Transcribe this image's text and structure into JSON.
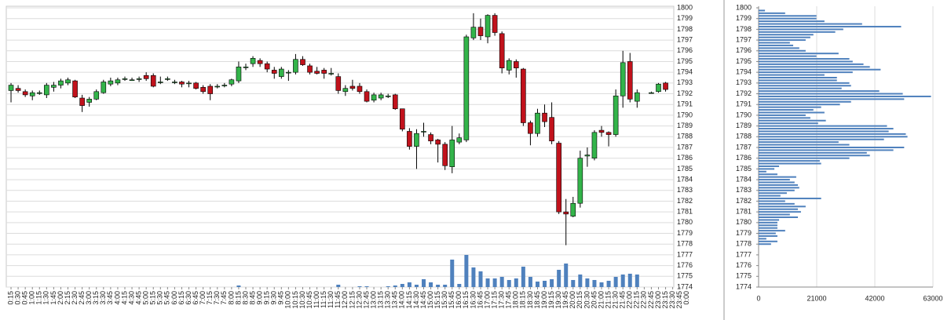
{
  "chart_data": [
    {
      "type": "candlestick",
      "categories": [
        "0:15",
        "0:30",
        "0:45",
        "1:00",
        "1:15",
        "1:30",
        "1:45",
        "2:00",
        "2:15",
        "2:30",
        "2:45",
        "3:00",
        "3:15",
        "3:30",
        "3:45",
        "4:00",
        "4:15",
        "4:30",
        "4:45",
        "5:00",
        "5:15",
        "5:30",
        "5:45",
        "6:00",
        "6:15",
        "6:30",
        "6:45",
        "7:00",
        "7:15",
        "7:30",
        "7:45",
        "8:00",
        "8:15",
        "8:30",
        "8:45",
        "9:00",
        "9:15",
        "9:30",
        "9:45",
        "10:00",
        "10:15",
        "10:30",
        "10:45",
        "11:00",
        "11:15",
        "11:30",
        "11:45",
        "12:00",
        "12:15",
        "12:30",
        "12:45",
        "13:00",
        "13:15",
        "13:30",
        "13:45",
        "14:00",
        "14:15",
        "14:30",
        "14:45",
        "15:00",
        "15:15",
        "15:30",
        "15:45",
        "16:00",
        "16:15",
        "16:30",
        "16:45",
        "17:00",
        "17:15",
        "17:30",
        "17:45",
        "18:00",
        "18:15",
        "18:30",
        "18:45",
        "19:00",
        "19:15",
        "19:30",
        "19:45",
        "20:00",
        "20:15",
        "20:30",
        "20:45",
        "21:00",
        "21:15",
        "21:30",
        "21:45",
        "22:00",
        "22:15",
        "22:30",
        "22:45",
        "23:00",
        "23:15",
        "23:30",
        "23:45",
        "0:00"
      ],
      "open": [
        1792.3,
        1792.5,
        1792.2,
        1791.8,
        1792.1,
        1791.9,
        1792.6,
        1792.8,
        1793.0,
        1793.2,
        1791.6,
        1791.2,
        1791.5,
        1792.1,
        1792.9,
        1793.0,
        1793.4,
        1793.3,
        1793.4,
        1793.7,
        1793.7,
        1793.1,
        1793.4,
        1793.1,
        1793.1,
        1793.0,
        1793.0,
        1792.6,
        1792.7,
        1792.7,
        1792.8,
        1792.9,
        1793.2,
        1794.5,
        1794.8,
        1795.1,
        1794.8,
        1794.2,
        1793.6,
        1794.0,
        1794.0,
        1795.2,
        1794.6,
        1794.1,
        1794.2,
        1793.9,
        1793.6,
        1792.2,
        1792.7,
        1792.7,
        1792.2,
        1791.4,
        1791.6,
        1791.8,
        1791.9,
        1790.6,
        1788.5,
        1787.1,
        1788.5,
        1788.2,
        1787.7,
        1787.3,
        1785.2,
        1787.5,
        1787.7,
        1797.2,
        1798.2,
        1797.3,
        1799.3,
        1797.6,
        1794.2,
        1795.0,
        1794.3,
        1789.3,
        1788.3,
        1790.2,
        1789.8,
        1787.4,
        1781.0,
        1780.6,
        1781.8,
        1786.2,
        1786.0,
        1788.6,
        1788.4,
        1788.2,
        1791.8,
        1795.0,
        1791.3,
        null,
        1792.1,
        1792.2,
        1793.0,
        null,
        null,
        null
      ],
      "high": [
        1793.0,
        1792.8,
        1792.4,
        1792.3,
        1792.3,
        1793.0,
        1793.1,
        1793.4,
        1793.5,
        1793.3,
        1791.9,
        1791.7,
        1792.4,
        1793.3,
        1793.5,
        1793.5,
        1793.6,
        1793.5,
        1793.6,
        1794.0,
        1793.9,
        1793.6,
        1793.6,
        1793.3,
        1793.2,
        1793.2,
        1793.1,
        1792.8,
        1792.9,
        1792.9,
        1793.0,
        1793.4,
        1795.0,
        1794.8,
        1795.5,
        1795.3,
        1795.0,
        1794.5,
        1794.5,
        1794.2,
        1795.7,
        1795.5,
        1794.8,
        1794.5,
        1794.4,
        1794.4,
        1793.9,
        1792.8,
        1793.3,
        1793.0,
        1792.4,
        1792.1,
        1792.1,
        1792.0,
        1792.0,
        1790.6,
        1788.8,
        1788.7,
        1789.3,
        1788.4,
        1787.8,
        1787.5,
        1789.0,
        1788.3,
        1797.5,
        1799.5,
        1799.0,
        1799.4,
        1799.5,
        1797.8,
        1795.3,
        1795.2,
        1794.4,
        1789.5,
        1790.6,
        1791.0,
        1791.2,
        1787.6,
        1782.2,
        1782.4,
        1786.7,
        1787.0,
        1788.6,
        1789.0,
        1788.5,
        1792.4,
        1796.0,
        1795.8,
        1792.4,
        null,
        1792.2,
        1793.0,
        1793.1,
        null,
        null,
        null
      ],
      "low": [
        1791.2,
        1792.1,
        1791.7,
        1791.4,
        1791.9,
        1791.6,
        1792.2,
        1792.5,
        1792.8,
        1791.6,
        1790.3,
        1790.8,
        1791.4,
        1792.0,
        1792.7,
        1792.8,
        1793.2,
        1793.2,
        1793.1,
        1793.2,
        1792.6,
        1792.9,
        1793.2,
        1792.9,
        1792.6,
        1792.6,
        1792.4,
        1792.0,
        1791.4,
        1792.5,
        1792.6,
        1792.7,
        1793.0,
        1794.2,
        1794.5,
        1794.5,
        1794.0,
        1793.4,
        1793.4,
        1793.2,
        1793.8,
        1794.6,
        1793.8,
        1793.8,
        1793.4,
        1793.7,
        1792.0,
        1791.8,
        1792.3,
        1792.0,
        1791.2,
        1791.2,
        1791.4,
        1791.6,
        1790.5,
        1788.5,
        1786.8,
        1785.0,
        1788.0,
        1787.3,
        1785.6,
        1784.9,
        1784.6,
        1787.3,
        1787.5,
        1797.0,
        1797.0,
        1796.7,
        1797.4,
        1793.9,
        1793.8,
        1793.5,
        1789.0,
        1787.2,
        1788.0,
        1788.9,
        1787.3,
        1780.8,
        1777.9,
        1780.5,
        1781.4,
        1785.2,
        1785.8,
        1788.0,
        1787.1,
        1788.0,
        1790.7,
        1791.2,
        1790.7,
        null,
        1792.0,
        1792.1,
        1792.2,
        null,
        null,
        null
      ],
      "close": [
        1792.8,
        1792.3,
        1791.9,
        1792.1,
        1792.1,
        1792.8,
        1792.8,
        1793.2,
        1793.3,
        1791.7,
        1790.9,
        1791.5,
        1792.2,
        1793.1,
        1793.2,
        1793.3,
        1793.4,
        1793.3,
        1793.4,
        1793.4,
        1792.7,
        1793.1,
        1793.4,
        1793.1,
        1792.9,
        1793.0,
        1792.5,
        1792.2,
        1792.0,
        1792.7,
        1792.8,
        1793.3,
        1794.5,
        1794.5,
        1795.3,
        1794.8,
        1794.3,
        1793.9,
        1794.3,
        1794.0,
        1795.2,
        1794.7,
        1794.0,
        1793.9,
        1793.9,
        1793.9,
        1792.3,
        1792.5,
        1792.5,
        1792.2,
        1791.3,
        1791.9,
        1791.9,
        1791.8,
        1790.6,
        1788.7,
        1787.1,
        1788.3,
        1788.5,
        1787.6,
        1787.3,
        1785.3,
        1787.7,
        1787.9,
        1797.3,
        1798.2,
        1797.4,
        1799.3,
        1797.7,
        1794.4,
        1795.1,
        1794.4,
        1789.3,
        1788.3,
        1790.2,
        1789.4,
        1787.6,
        1781.0,
        1780.8,
        1781.8,
        1786.0,
        1786.3,
        1788.4,
        1788.4,
        1788.2,
        1791.8,
        1794.9,
        1791.5,
        1792.1,
        null,
        1792.1,
        1792.9,
        1792.4,
        null,
        null,
        null
      ],
      "volume": [
        0,
        0,
        0,
        0,
        0,
        0,
        0,
        0,
        0,
        0,
        0,
        0,
        0,
        0,
        0,
        0,
        0,
        0,
        0,
        0,
        0,
        0,
        0,
        0,
        0,
        0,
        0,
        0,
        0,
        0,
        0,
        0,
        200,
        0,
        0,
        0,
        0,
        0,
        0,
        0,
        0,
        0,
        0,
        0,
        0,
        0,
        300,
        0,
        0,
        100,
        100,
        0,
        0,
        100,
        200,
        400,
        600,
        300,
        1000,
        600,
        300,
        300,
        3500,
        400,
        4100,
        2500,
        2000,
        1100,
        1100,
        1300,
        900,
        1100,
        2600,
        1300,
        700,
        800,
        1000,
        2200,
        3000,
        900,
        1600,
        1100,
        900,
        600,
        800,
        1300,
        1600,
        1700,
        1600,
        null,
        0,
        0,
        0,
        null,
        null,
        null
      ],
      "up_color": "#33b44a",
      "down_color": "#c1121c",
      "volume_color": "#4f81bd",
      "ylim": [
        1774,
        1800
      ],
      "yticks": [
        1774,
        1775,
        1776,
        1777,
        1778,
        1779,
        1780,
        1781,
        1782,
        1783,
        1784,
        1785,
        1786,
        1787,
        1788,
        1789,
        1790,
        1791,
        1792,
        1793,
        1794,
        1795,
        1796,
        1797,
        1798,
        1799,
        1800
      ],
      "grid": true
    },
    {
      "type": "bar",
      "orientation": "horizontal",
      "color": "#4f81bd",
      "y": [
        1799.75,
        1799.5,
        1799.25,
        1799,
        1798.75,
        1798.5,
        1798.25,
        1798,
        1797.75,
        1797.5,
        1797.25,
        1797,
        1796.75,
        1796.5,
        1796.25,
        1796,
        1795.75,
        1795.5,
        1795.25,
        1795,
        1794.75,
        1794.5,
        1794.25,
        1794,
        1793.75,
        1793.5,
        1793.25,
        1793,
        1792.75,
        1792.5,
        1792.25,
        1792,
        1791.75,
        1791.5,
        1791.25,
        1791,
        1790.75,
        1790.5,
        1790.25,
        1790,
        1789.75,
        1789.5,
        1789.25,
        1789,
        1788.75,
        1788.5,
        1788.25,
        1788,
        1787.75,
        1787.5,
        1787.25,
        1787,
        1786.75,
        1786.5,
        1786.25,
        1786,
        1785.75,
        1785.5,
        1785.25,
        1785,
        1784.75,
        1784.5,
        1784.25,
        1784,
        1783.75,
        1783.5,
        1783.25,
        1783,
        1782.75,
        1782.5,
        1782.25,
        1782,
        1781.75,
        1781.5,
        1781.25,
        1781,
        1780.75,
        1780.5,
        1780.25,
        1780,
        1779.75,
        1779.5,
        1779.25,
        1779,
        1778.75,
        1778.5,
        1778.25,
        1778
      ],
      "values": [
        2300,
        9600,
        20900,
        20900,
        23800,
        37400,
        51500,
        30600,
        27700,
        19800,
        18700,
        17000,
        11300,
        12500,
        14700,
        17000,
        28900,
        20900,
        32800,
        34000,
        37900,
        40200,
        44100,
        34000,
        23800,
        28300,
        28300,
        32800,
        33400,
        30000,
        43600,
        52100,
        62300,
        52600,
        33400,
        29400,
        22600,
        19800,
        23800,
        17000,
        18700,
        24300,
        21500,
        46400,
        48700,
        47000,
        53200,
        53800,
        45300,
        28900,
        32800,
        52600,
        48700,
        39100,
        40200,
        32800,
        22100,
        22600,
        7400,
        5700,
        2800,
        6800,
        13600,
        11300,
        13000,
        14200,
        14700,
        13000,
        10200,
        7900,
        22600,
        9600,
        13000,
        17000,
        14200,
        15300,
        11300,
        14200,
        7400,
        6800,
        6800,
        6800,
        9600,
        6200,
        6800,
        2800,
        6800,
        4500
      ],
      "xlim": [
        0,
        63000
      ],
      "xticks": [
        0,
        21000,
        42000,
        63000
      ],
      "ylim": [
        1774,
        1800
      ],
      "yticks": [
        1774,
        1775,
        1776,
        1777,
        1778,
        1779,
        1780,
        1781,
        1782,
        1783,
        1784,
        1785,
        1786,
        1787,
        1788,
        1789,
        1790,
        1791,
        1792,
        1793,
        1794,
        1795,
        1796,
        1797,
        1798,
        1799,
        1800
      ],
      "grid": true
    }
  ]
}
